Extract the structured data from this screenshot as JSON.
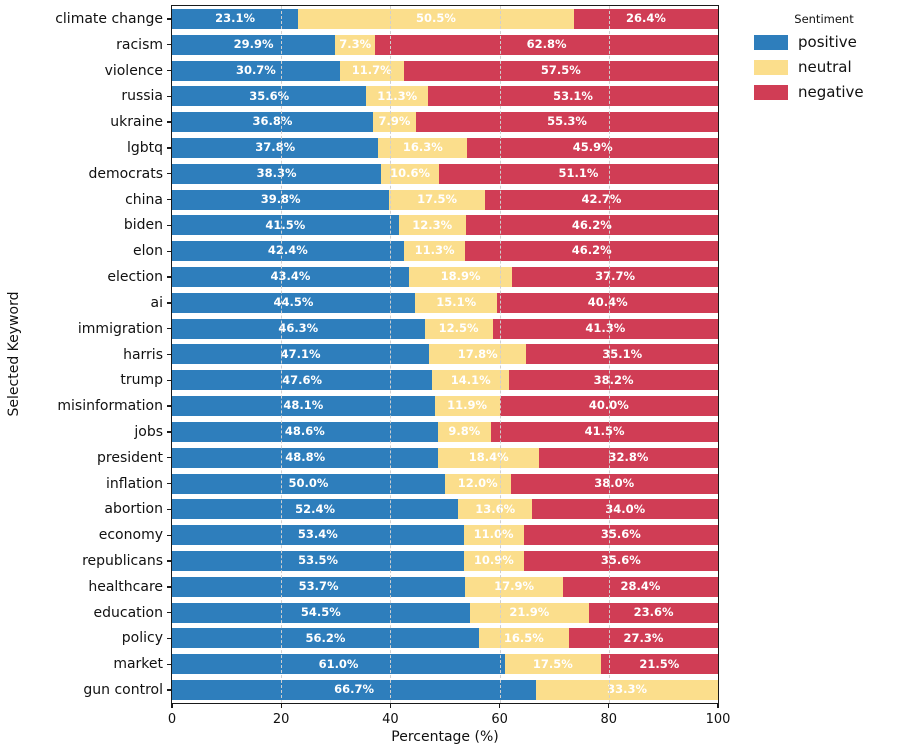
{
  "chart_data": {
    "type": "bar",
    "orientation": "horizontal",
    "stacked": true,
    "title": "",
    "xlabel": "Percentage (%)",
    "ylabel": "Selected Keyword",
    "xlim": [
      0,
      100
    ],
    "xticks": [
      0,
      20,
      40,
      60,
      80,
      100
    ],
    "grid": "vertical dashed at 20/40/60/80, drawn over bars",
    "value_label_format": "one decimal + %",
    "categories": [
      "climate change",
      "racism",
      "violence",
      "russia",
      "ukraine",
      "lgbtq",
      "democrats",
      "china",
      "biden",
      "elon",
      "election",
      "ai",
      "immigration",
      "harris",
      "trump",
      "misinformation",
      "jobs",
      "president",
      "inflation",
      "abortion",
      "economy",
      "republicans",
      "healthcare",
      "education",
      "policy",
      "market",
      "gun control"
    ],
    "series": [
      {
        "name": "positive",
        "color": "#2E7EBC",
        "values": [
          23.1,
          29.9,
          30.7,
          35.6,
          36.8,
          37.8,
          38.3,
          39.8,
          41.5,
          42.4,
          43.4,
          44.5,
          46.3,
          47.1,
          47.6,
          48.1,
          48.6,
          48.8,
          50.0,
          52.4,
          53.4,
          53.5,
          53.7,
          54.5,
          56.2,
          61.0,
          66.7
        ]
      },
      {
        "name": "neutral",
        "color": "#FBDE8C",
        "values": [
          50.5,
          7.3,
          11.7,
          11.3,
          7.9,
          16.3,
          10.6,
          17.5,
          12.3,
          11.3,
          18.9,
          15.1,
          12.5,
          17.8,
          14.1,
          11.9,
          9.8,
          18.4,
          12.0,
          13.6,
          11.0,
          10.9,
          17.9,
          21.9,
          16.5,
          17.5,
          33.3
        ]
      },
      {
        "name": "negative",
        "color": "#D03D55",
        "values": [
          26.4,
          62.8,
          57.5,
          53.1,
          55.3,
          45.9,
          51.1,
          42.7,
          46.2,
          46.2,
          37.7,
          40.4,
          41.3,
          35.1,
          38.2,
          40.0,
          41.5,
          32.8,
          38.0,
          34.0,
          35.6,
          35.6,
          28.4,
          23.6,
          27.3,
          21.5,
          0.0
        ]
      }
    ],
    "legend": {
      "title": "Sentiment",
      "entries": [
        "positive",
        "neutral",
        "negative"
      ],
      "position": "outside upper right"
    }
  }
}
